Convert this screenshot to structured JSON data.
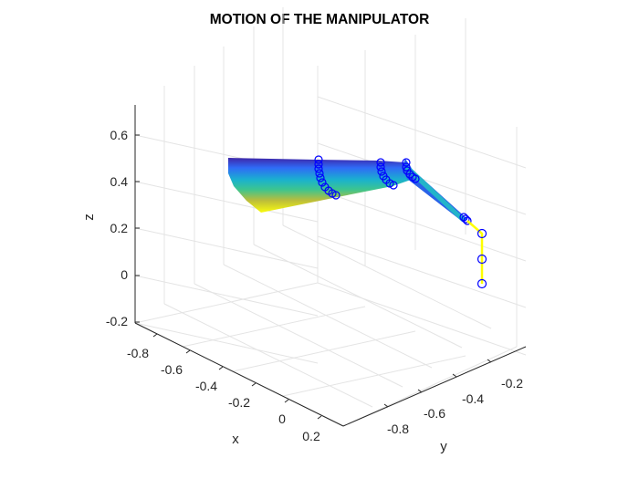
{
  "chart_data": {
    "type": "3d-line",
    "title": "MOTION OF THE MANIPULATOR",
    "xlabel": "x",
    "ylabel": "y",
    "zlabel": "z",
    "x_ticks": [
      "-0.8",
      "-0.6",
      "-0.4",
      "-0.2",
      "0",
      "0.2"
    ],
    "y_ticks": [
      "-0.8",
      "-0.6",
      "-0.4",
      "-0.2"
    ],
    "z_ticks": [
      "-0.2",
      "0",
      "0.2",
      "0.4",
      "0.6"
    ],
    "grid": true,
    "colors": {
      "sweep_colormap": [
        "#3e26a8",
        "#2f6af6",
        "#1ab1ce",
        "#3dc58f",
        "#bcbd3a",
        "#fde725",
        "#f9fb0e"
      ],
      "final_pose_links": "#ffff00",
      "joint_markers": "#0000ff"
    }
  }
}
